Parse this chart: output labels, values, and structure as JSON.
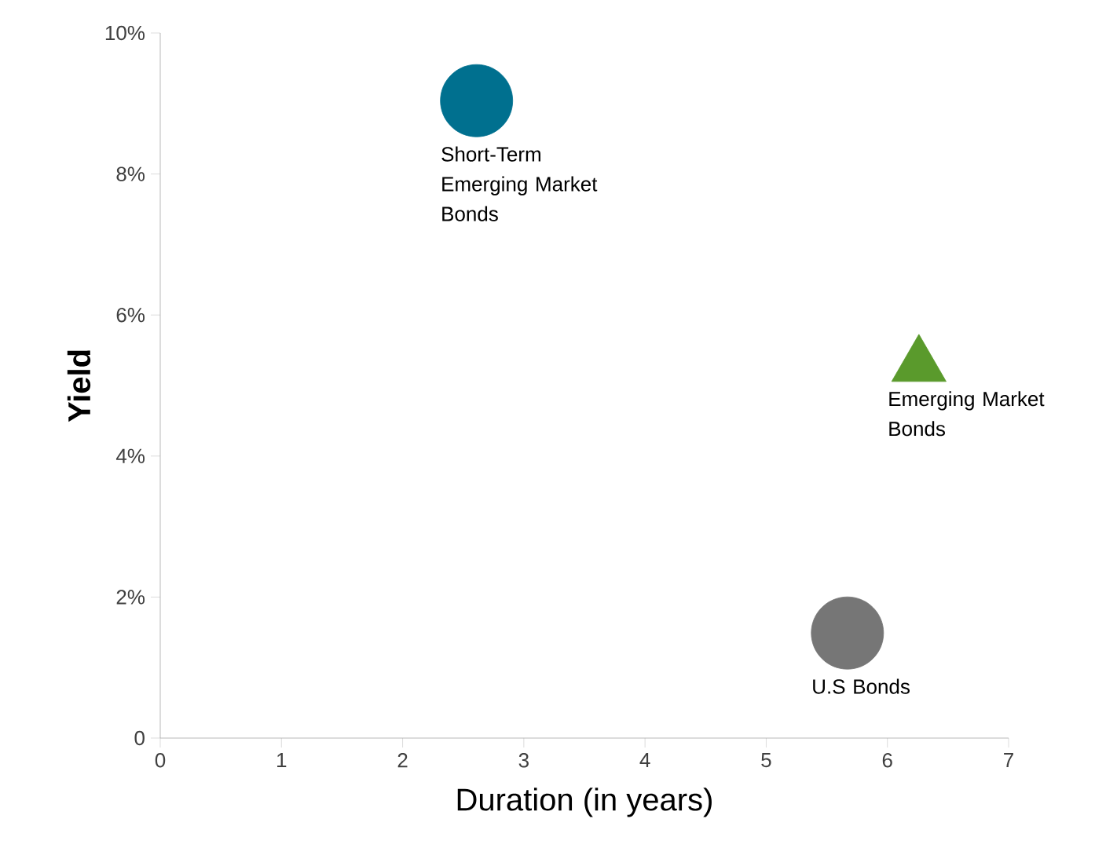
{
  "chart_data": {
    "type": "scatter",
    "xlabel": "Duration (in years)",
    "ylabel": "Yield",
    "xlim": [
      0,
      7
    ],
    "xticks": [
      0,
      1,
      2,
      3,
      4,
      5,
      6,
      7
    ],
    "ylim": [
      0,
      10
    ],
    "yticks": [
      {
        "value": 0,
        "label": "0"
      },
      {
        "value": 2,
        "label": "2%"
      },
      {
        "value": 4,
        "label": "4%"
      },
      {
        "value": 6,
        "label": "6%"
      },
      {
        "value": 8,
        "label": "8%"
      },
      {
        "value": 10,
        "label": "10%"
      }
    ],
    "grid": false,
    "legend": false,
    "series": [
      {
        "name": "Short-Term Emerging Market Bonds",
        "color": "#00708f",
        "marker": "circle",
        "x": [
          2.61
        ],
        "values": [
          9.04
        ]
      },
      {
        "name": "Emerging Market Bonds",
        "color": "#5a9a2c",
        "marker": "triangle",
        "x": [
          6.26
        ],
        "values": [
          5.28
        ]
      },
      {
        "name": "U.S Bonds",
        "color": "#767676",
        "marker": "circle",
        "x": [
          5.67
        ],
        "values": [
          1.49
        ]
      }
    ]
  }
}
